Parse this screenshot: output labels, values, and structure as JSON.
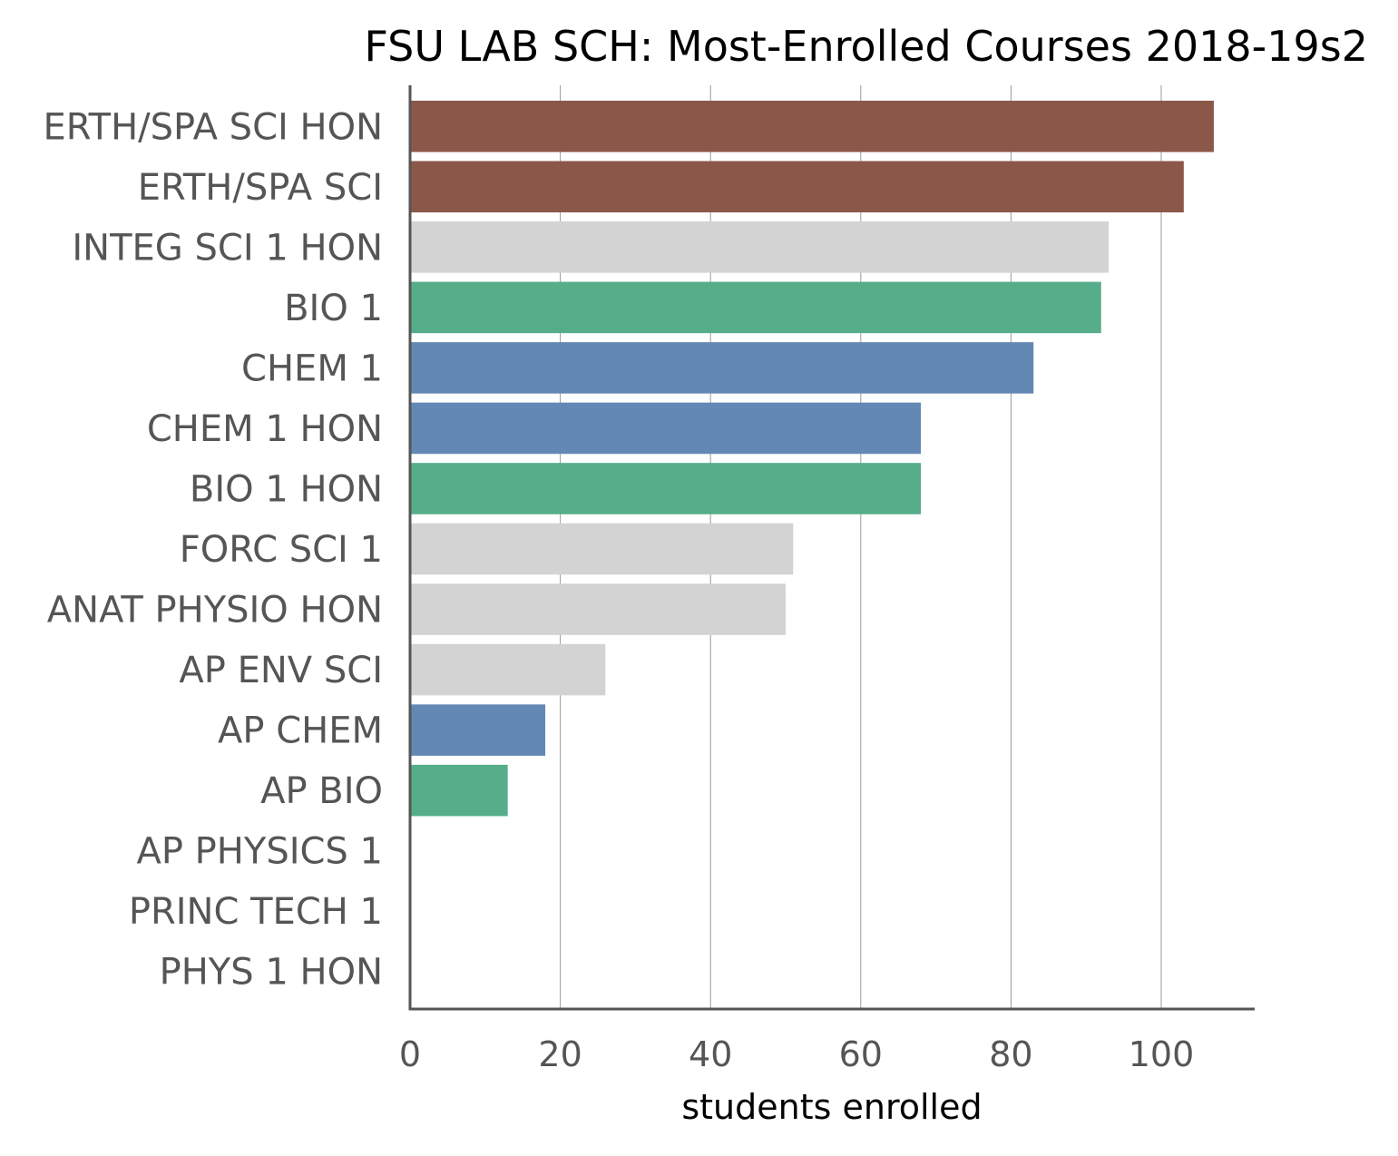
{
  "chart_data": {
    "type": "bar",
    "orientation": "horizontal",
    "title": "FSU LAB SCH: Most-Enrolled Courses 2018-19s2",
    "xlabel": "students enrolled",
    "ylabel": "",
    "xlim": [
      0,
      112
    ],
    "xticks": [
      0,
      20,
      40,
      60,
      80,
      100
    ],
    "grid": "vertical",
    "colors": {
      "earth_space": "#8b5749",
      "biology": "#55ad89",
      "chemistry": "#6388b4",
      "other": "#d3d3d3"
    },
    "bars": [
      {
        "category": "ERTH/SPA SCI HON",
        "value": 107,
        "color": "#8b5749"
      },
      {
        "category": "ERTH/SPA SCI",
        "value": 103,
        "color": "#8b5749"
      },
      {
        "category": "INTEG SCI 1 HON",
        "value": 93,
        "color": "#d3d3d3"
      },
      {
        "category": "BIO 1",
        "value": 92,
        "color": "#55ad89"
      },
      {
        "category": "CHEM 1",
        "value": 83,
        "color": "#6388b4"
      },
      {
        "category": "CHEM 1 HON",
        "value": 68,
        "color": "#6388b4"
      },
      {
        "category": "BIO 1 HON",
        "value": 68,
        "color": "#55ad89"
      },
      {
        "category": "FORC SCI 1",
        "value": 51,
        "color": "#d3d3d3"
      },
      {
        "category": "ANAT PHYSIO HON",
        "value": 50,
        "color": "#d3d3d3"
      },
      {
        "category": "AP ENV SCI",
        "value": 26,
        "color": "#d3d3d3"
      },
      {
        "category": "AP CHEM",
        "value": 18,
        "color": "#6388b4"
      },
      {
        "category": "AP BIO",
        "value": 13,
        "color": "#55ad89"
      },
      {
        "category": "AP PHYSICS 1",
        "value": 0,
        "color": "#d3d3d3"
      },
      {
        "category": "PRINC TECH 1",
        "value": 0,
        "color": "#d3d3d3"
      },
      {
        "category": "PHYS 1 HON",
        "value": 0,
        "color": "#d3d3d3"
      }
    ]
  }
}
